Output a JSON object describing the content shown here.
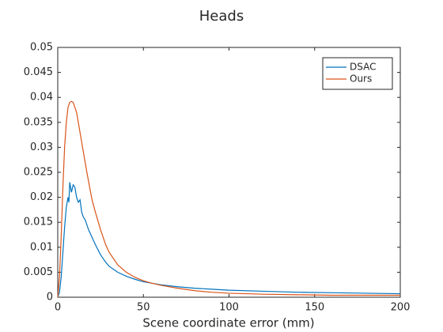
{
  "chart_data": {
    "type": "line",
    "title": "Heads",
    "xlabel": "Scene coordinate error (mm)",
    "xlim": [
      0,
      200
    ],
    "xticks": [
      0,
      50,
      100,
      150,
      200
    ],
    "ylim": [
      0,
      0.05
    ],
    "yticks": [
      0,
      0.005,
      0.01,
      0.015,
      0.02,
      0.025,
      0.03,
      0.035,
      0.04,
      0.045,
      0.05
    ],
    "legend": "northeast",
    "series": [
      {
        "name": "DSAC",
        "color": "#0072bd",
        "x": [
          0,
          1,
          2,
          3,
          4,
          5,
          6,
          6.5,
          7,
          8,
          9,
          10,
          11,
          12,
          13,
          14,
          15,
          16,
          18,
          20,
          22,
          25,
          28,
          30,
          35,
          40,
          45,
          50,
          55,
          60,
          70,
          80,
          90,
          100,
          120,
          140,
          160,
          180,
          200
        ],
        "values": [
          0,
          0.001,
          0.004,
          0.009,
          0.014,
          0.018,
          0.02,
          0.019,
          0.023,
          0.021,
          0.0225,
          0.022,
          0.02,
          0.019,
          0.0195,
          0.017,
          0.016,
          0.0155,
          0.0135,
          0.012,
          0.0105,
          0.0085,
          0.007,
          0.0062,
          0.005,
          0.0042,
          0.0036,
          0.0031,
          0.0028,
          0.0025,
          0.0021,
          0.0018,
          0.0016,
          0.0014,
          0.0012,
          0.001,
          0.0009,
          0.0008,
          0.0007
        ]
      },
      {
        "name": "Ours",
        "color": "#d95319",
        "x": [
          0,
          1,
          2,
          3,
          4,
          5,
          6,
          7,
          8,
          9,
          10,
          11,
          12,
          13,
          14,
          15,
          17,
          20,
          22,
          25,
          28,
          30,
          35,
          40,
          45,
          50,
          55,
          60,
          70,
          80,
          90,
          100,
          120,
          140,
          160,
          180,
          200
        ],
        "values": [
          0,
          0.004,
          0.012,
          0.022,
          0.03,
          0.035,
          0.038,
          0.039,
          0.0392,
          0.039,
          0.038,
          0.037,
          0.035,
          0.033,
          0.031,
          0.029,
          0.025,
          0.0195,
          0.017,
          0.0135,
          0.0105,
          0.009,
          0.0065,
          0.005,
          0.004,
          0.0033,
          0.0028,
          0.0024,
          0.0018,
          0.0013,
          0.001,
          0.0008,
          0.0006,
          0.0005,
          0.0004,
          0.0004,
          0.0004
        ]
      }
    ]
  }
}
